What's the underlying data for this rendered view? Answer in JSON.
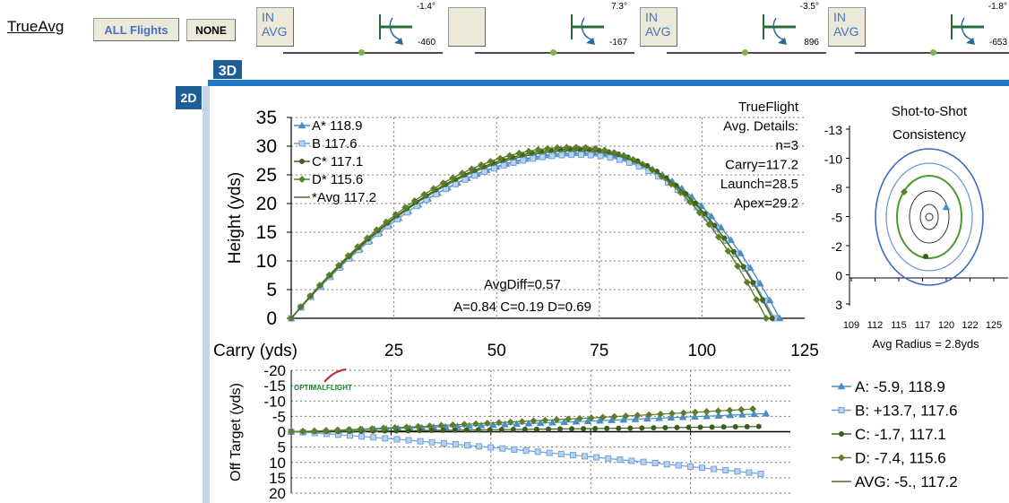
{
  "header": {
    "title": "TrueAvg",
    "all_flights_label": "ALL Flights",
    "none_label": "NONE"
  },
  "shots": [
    {
      "button": "IN\nAVG",
      "angle": "-1.4°",
      "value": "-460"
    },
    {
      "button": "",
      "angle": "7.3°",
      "value": "-167"
    },
    {
      "button": "IN\nAVG",
      "angle": "-3.5°",
      "value": "896"
    },
    {
      "button": "IN\nAVG",
      "angle": "-1.8°",
      "value": "-653"
    }
  ],
  "tabs": {
    "tab_3d": "3D",
    "tab_2d": "2D"
  },
  "colors": {
    "A": "#4a8fc4",
    "B": "#6fa0d8",
    "C": "#3c5e1c",
    "D": "#5d7e2a",
    "AVG": "#4a6e20",
    "tab": "#1f5d96",
    "bar": "#1f77c8"
  },
  "chart_data": [
    {
      "type": "line",
      "title": "",
      "xlabel": "Carry (yds)",
      "ylabel": "Height (yds)",
      "xlim": [
        0,
        125
      ],
      "ylim": [
        0,
        35
      ],
      "xticks": [
        "25",
        "50",
        "75",
        "100",
        "125"
      ],
      "yticks": [
        "0",
        "5",
        "10",
        "15",
        "20",
        "25",
        "30",
        "35"
      ],
      "legend": [
        "A*  118.9",
        "B  117.6",
        "C*  117.1",
        "D*  115.6",
        "*Avg 117.2"
      ],
      "series": [
        {
          "name": "A",
          "carry": 118.9,
          "apex": 28.8
        },
        {
          "name": "B",
          "carry": 117.6,
          "apex": 28.5
        },
        {
          "name": "C",
          "carry": 117.1,
          "apex": 29.5
        },
        {
          "name": "D",
          "carry": 115.6,
          "apex": 29.8
        },
        {
          "name": "Avg",
          "carry": 117.2,
          "apex": 29.2
        }
      ],
      "details": [
        "TrueFlight",
        "Avg. Details:",
        "n=3",
        "Carry=117.2",
        "Launch=28.5",
        "Apex=29.2"
      ],
      "diff_label": "AvgDiff=0.57",
      "diff_values": "A=0.84  C=0.19  D=0.69"
    },
    {
      "type": "line",
      "title": "",
      "xlabel": "",
      "ylabel": "Off Target (yds)",
      "xlim": [
        0,
        125
      ],
      "ylim": [
        -20,
        20
      ],
      "yticks": [
        "-20",
        "-15",
        "-10",
        "-5",
        "0",
        "5",
        "10",
        "15",
        "20"
      ],
      "logo": "OPTIMALFLIGHT",
      "series": [
        {
          "name": "A",
          "end_x": 118.9,
          "end_offset": -5.9
        },
        {
          "name": "B",
          "end_x": 117.6,
          "end_offset": 13.7
        },
        {
          "name": "C",
          "end_x": 117.1,
          "end_offset": -1.7
        },
        {
          "name": "D",
          "end_x": 115.6,
          "end_offset": -7.4
        }
      ],
      "legend": [
        "A: -5.9, 118.9",
        "B: +13.7, 117.6",
        "C: -1.7, 117.1",
        "D: -7.4, 115.6",
        "AVG: -5., 117.2"
      ]
    },
    {
      "type": "scatter",
      "title": "Shot-to-Shot\nConsistency",
      "xlabel": "Avg Radius = 2.8yds",
      "xticks": [
        "109",
        "112",
        "115",
        "117",
        "120",
        "122",
        "125"
      ],
      "yticks": [
        "-13",
        "-10",
        "-8",
        "-5",
        "-2",
        "0",
        "3"
      ],
      "points": [
        {
          "name": "A",
          "x": 118.9,
          "y": -5.9
        },
        {
          "name": "C",
          "x": 117.1,
          "y": -1.7
        },
        {
          "name": "D",
          "x": 115.6,
          "y": -7.4
        }
      ],
      "center": {
        "x": 117.2,
        "y": -5.0
      }
    }
  ]
}
